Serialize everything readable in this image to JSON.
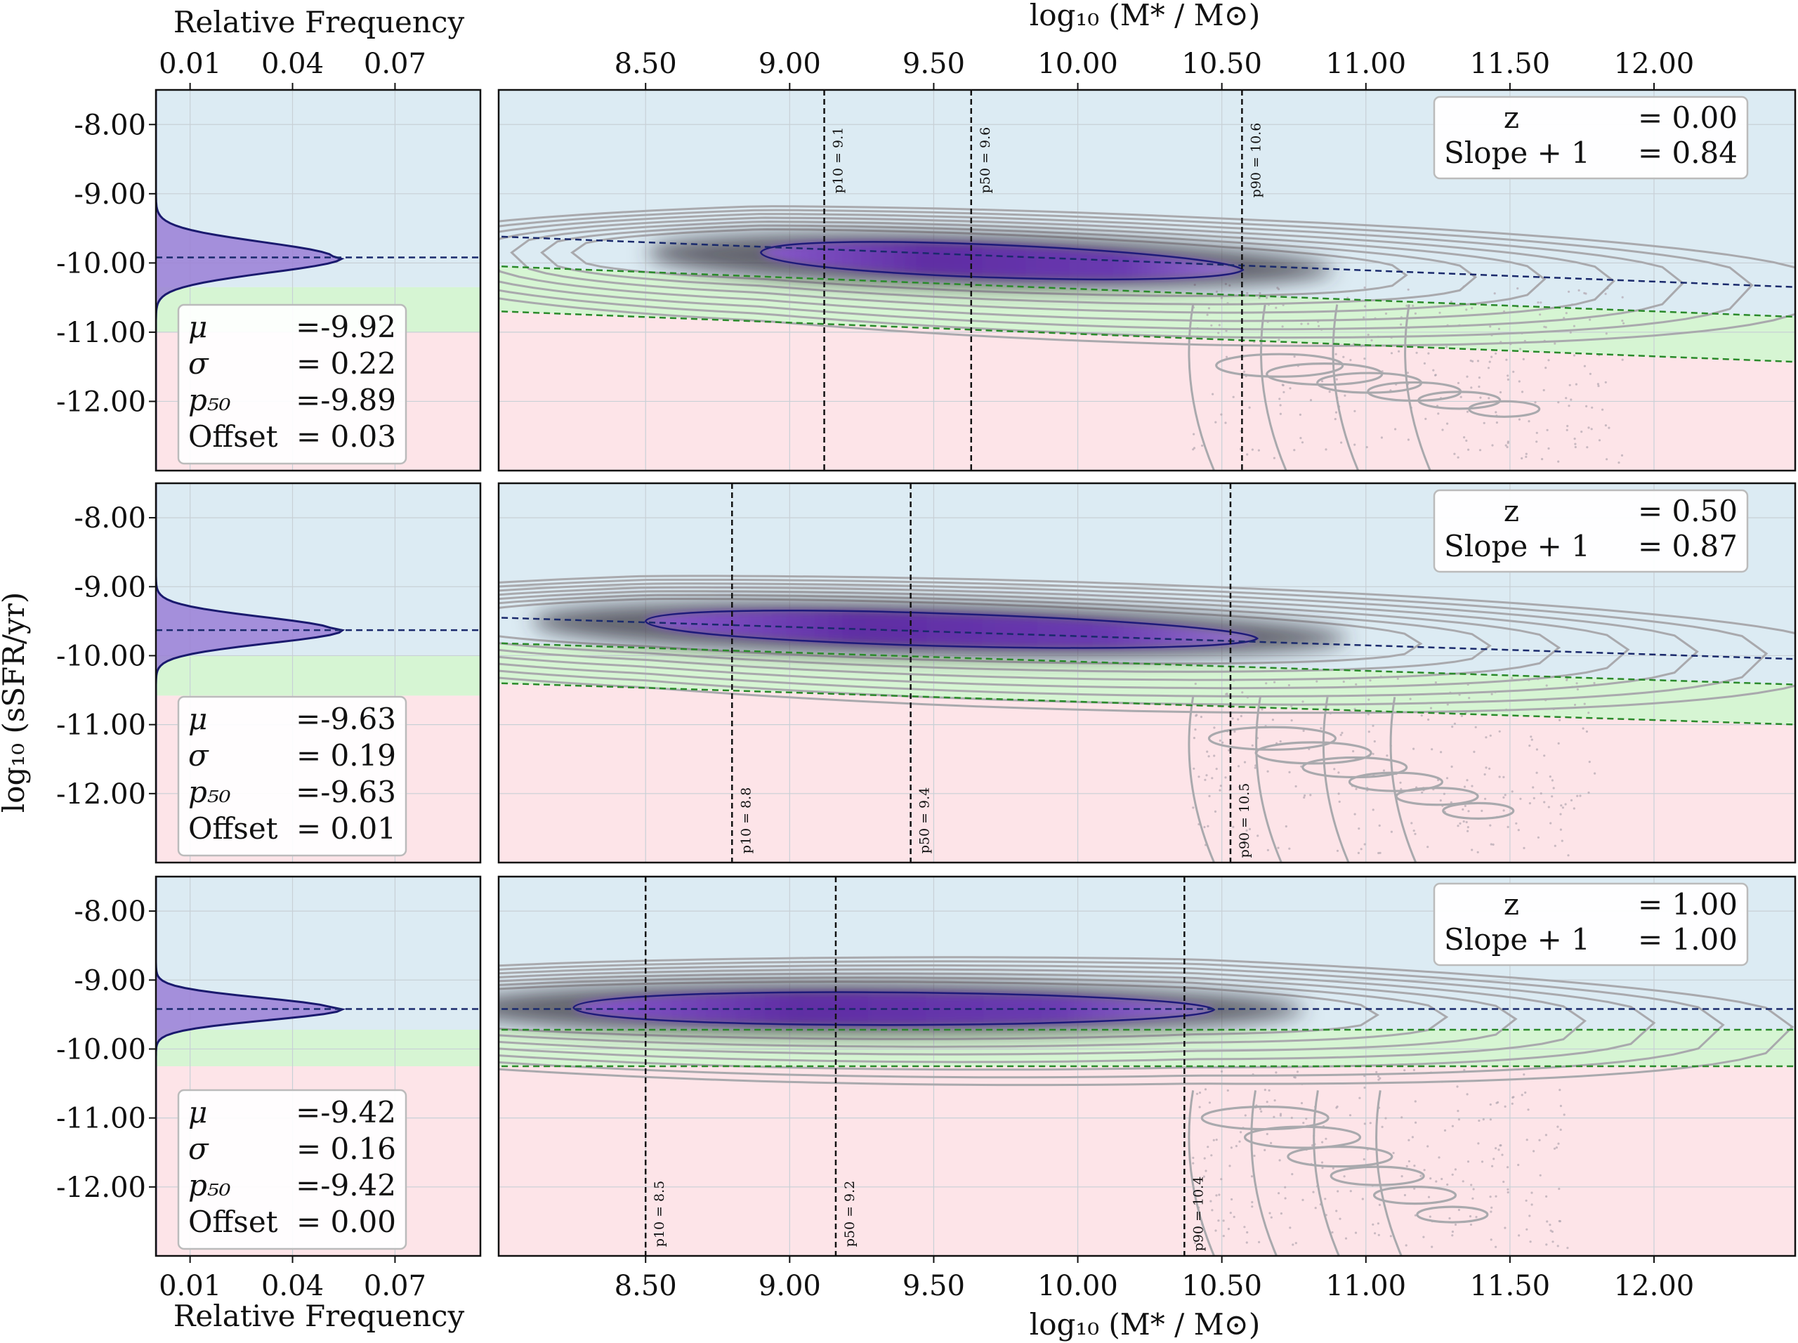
{
  "colors": {
    "sf_region": "#dcebf3",
    "gv_region": "#d6f5d3",
    "q_region": "#fde4e8",
    "kde_outer": "#a9a9ad",
    "kde_core": "#6a2fb0",
    "ridge_line": "#1a2a6c",
    "green_line": "#2a8a2a",
    "hist_fill": "#9a7fd6",
    "hist_line": "#1a1a6e"
  },
  "labels": {
    "hist_xlabel": "Relative Frequency",
    "mass_xlabel_top": "log₁₀ (M* / M⊙)",
    "mass_xlabel_bottom": "log₁₀ (M* / M⊙)",
    "ylabel": "log₁₀ (sSFR/yr)"
  },
  "chart_data": [
    {
      "type": "area",
      "panel": "histogram",
      "z": "0.00",
      "xlim": [
        0.0,
        0.095
      ],
      "x_ticks": [
        "0.01",
        "0.04",
        "0.07"
      ],
      "ylim": [
        -13.0,
        -7.5
      ],
      "y_ticks": [
        "-8.00",
        "-9.00",
        "-10.00",
        "-11.00",
        "-12.00"
      ],
      "mu": -9.92,
      "sigma": 0.22,
      "peak": 0.052,
      "regions": {
        "sf": [
          -10.35,
          -7.5
        ],
        "gv": [
          -11.0,
          -10.35
        ],
        "q": [
          -13.0,
          -11.0
        ]
      },
      "stats": [
        {
          "label": "μ",
          "value": "=-9.92"
        },
        {
          "label": "σ",
          "value": "= 0.22"
        },
        {
          "label": "p₅₀",
          "value": "=-9.89"
        },
        {
          "label": "Offset",
          "value": "= 0.03"
        }
      ]
    },
    {
      "type": "scatter",
      "panel": "kde",
      "z": "0.00",
      "xlim": [
        7.99,
        12.49
      ],
      "x_ticks": [
        "8.50",
        "9.00",
        "9.50",
        "10.00",
        "10.50",
        "11.00",
        "11.50",
        "12.00"
      ],
      "ylim": [
        -13.0,
        -7.5
      ],
      "info": [
        {
          "label": "z",
          "value": "= 0.00"
        },
        {
          "label": "Slope + 1",
          "value": "= 0.84"
        }
      ],
      "ridge": {
        "x": [
          8.0,
          12.5
        ],
        "y": [
          -9.62,
          -10.35
        ]
      },
      "gv_upper": {
        "x": [
          8.0,
          12.5
        ],
        "y": [
          -10.05,
          -10.78
        ]
      },
      "gv_lower": {
        "x": [
          8.0,
          12.5
        ],
        "y": [
          -10.7,
          -11.43
        ]
      },
      "core_band": {
        "x": [
          8.9,
          10.5
        ],
        "y": [
          -9.85,
          -10.1
        ],
        "h": [
          0.28,
          0.2
        ]
      },
      "quenched_tail": {
        "x": [
          10.4,
          11.6
        ],
        "y": [
          -11.3,
          -12.2
        ]
      },
      "percentiles": [
        {
          "x": 9.12,
          "label": "p10 = 9.1"
        },
        {
          "x": 9.63,
          "label": "p50 = 9.6"
        },
        {
          "x": 10.57,
          "label": "p90 = 10.6"
        }
      ]
    },
    {
      "type": "area",
      "panel": "histogram",
      "z": "0.50",
      "xlim": [
        0.0,
        0.095
      ],
      "x_ticks": [
        "0.01",
        "0.04",
        "0.07"
      ],
      "ylim": [
        -13.0,
        -7.5
      ],
      "y_ticks": [
        "-8.00",
        "-9.00",
        "-10.00",
        "-11.00",
        "-12.00"
      ],
      "mu": -9.63,
      "sigma": 0.19,
      "peak": 0.052,
      "regions": {
        "sf": [
          -10.0,
          -7.5
        ],
        "gv": [
          -10.58,
          -10.0
        ],
        "q": [
          -13.0,
          -10.58
        ]
      },
      "stats": [
        {
          "label": "μ",
          "value": "=-9.63"
        },
        {
          "label": "σ",
          "value": "= 0.19"
        },
        {
          "label": "p₅₀",
          "value": "=-9.63"
        },
        {
          "label": "Offset",
          "value": "= 0.01"
        }
      ]
    },
    {
      "type": "scatter",
      "panel": "kde",
      "z": "0.50",
      "xlim": [
        7.99,
        12.49
      ],
      "x_ticks": [
        "8.50",
        "9.00",
        "9.50",
        "10.00",
        "10.50",
        "11.00",
        "11.50",
        "12.00"
      ],
      "ylim": [
        -13.0,
        -7.5
      ],
      "info": [
        {
          "label": "z",
          "value": "= 0.50"
        },
        {
          "label": "Slope + 1",
          "value": "= 0.87"
        }
      ],
      "ridge": {
        "x": [
          8.0,
          12.5
        ],
        "y": [
          -9.45,
          -10.05
        ]
      },
      "gv_upper": {
        "x": [
          8.0,
          12.5
        ],
        "y": [
          -9.82,
          -10.42
        ]
      },
      "gv_lower": {
        "x": [
          8.0,
          12.5
        ],
        "y": [
          -10.4,
          -11.0
        ]
      },
      "core_band": {
        "x": [
          8.5,
          10.55
        ],
        "y": [
          -9.5,
          -9.75
        ],
        "h": [
          0.26,
          0.2
        ]
      },
      "quenched_tail": {
        "x": [
          10.4,
          11.5
        ],
        "y": [
          -10.9,
          -12.4
        ]
      },
      "percentiles": [
        {
          "x": 8.8,
          "label": "p10 = 8.8"
        },
        {
          "x": 9.42,
          "label": "p50 = 9.4"
        },
        {
          "x": 10.53,
          "label": "p90 = 10.5"
        }
      ]
    },
    {
      "type": "area",
      "panel": "histogram",
      "z": "1.00",
      "xlim": [
        0.0,
        0.095
      ],
      "x_ticks": [
        "0.01",
        "0.04",
        "0.07"
      ],
      "ylim": [
        -13.0,
        -7.5
      ],
      "y_ticks": [
        "-8.00",
        "-9.00",
        "-10.00",
        "-11.00",
        "-12.00"
      ],
      "mu": -9.42,
      "sigma": 0.16,
      "peak": 0.052,
      "regions": {
        "sf": [
          -9.72,
          -7.5
        ],
        "gv": [
          -10.25,
          -9.72
        ],
        "q": [
          -13.0,
          -10.25
        ]
      },
      "stats": [
        {
          "label": "μ",
          "value": "=-9.42"
        },
        {
          "label": "σ",
          "value": "= 0.16"
        },
        {
          "label": "p₅₀",
          "value": "=-9.42"
        },
        {
          "label": "Offset",
          "value": "= 0.00"
        }
      ]
    },
    {
      "type": "scatter",
      "panel": "kde",
      "z": "1.00",
      "xlim": [
        7.99,
        12.49
      ],
      "x_ticks": [
        "8.50",
        "9.00",
        "9.50",
        "10.00",
        "10.50",
        "11.00",
        "11.50",
        "12.00"
      ],
      "ylim": [
        -13.0,
        -7.5
      ],
      "info": [
        {
          "label": "z",
          "value": "= 1.00"
        },
        {
          "label": "Slope + 1",
          "value": "= 1.00"
        }
      ],
      "ridge": {
        "x": [
          8.0,
          12.5
        ],
        "y": [
          -9.42,
          -9.42
        ]
      },
      "gv_upper": {
        "x": [
          8.0,
          12.5
        ],
        "y": [
          -9.72,
          -9.72
        ]
      },
      "gv_lower": {
        "x": [
          8.0,
          12.5
        ],
        "y": [
          -10.25,
          -10.25
        ]
      },
      "core_band": {
        "x": [
          8.25,
          10.4
        ],
        "y": [
          -9.4,
          -9.43
        ],
        "h": [
          0.26,
          0.2
        ]
      },
      "quenched_tail": {
        "x": [
          10.4,
          11.4
        ],
        "y": [
          -10.6,
          -12.6
        ]
      },
      "percentiles": [
        {
          "x": 8.5,
          "label": "p10 = 8.5"
        },
        {
          "x": 9.16,
          "label": "p50 = 9.2"
        },
        {
          "x": 10.37,
          "label": "p90 = 10.4"
        }
      ]
    }
  ]
}
